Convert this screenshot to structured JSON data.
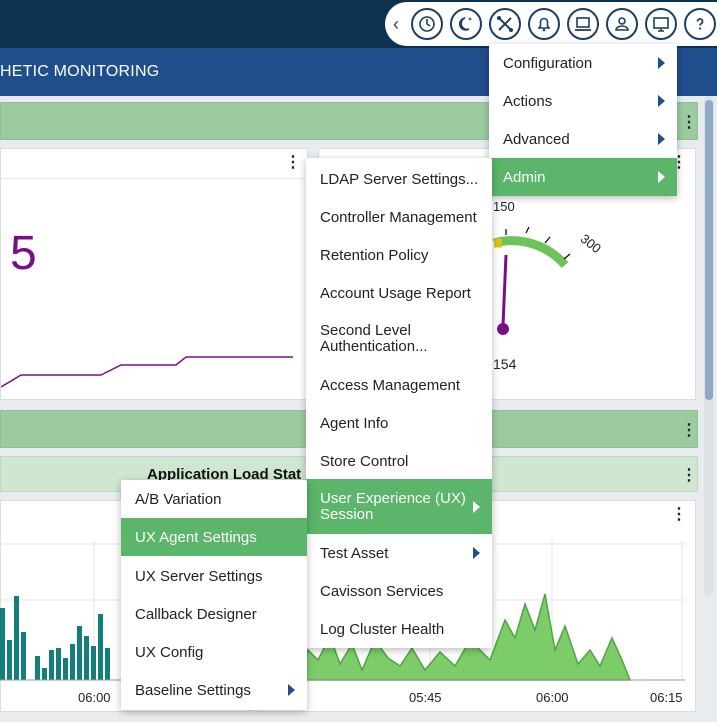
{
  "header": {
    "nav_title": "HETIC MONITORING",
    "toolbar_icons": [
      "clock-icon",
      "night-mode-icon",
      "tools-icon",
      "bell-icon",
      "laptop-icon",
      "user-icon",
      "monitor-icon",
      "help-icon"
    ]
  },
  "widgets": {
    "big_number": "5",
    "gauge": {
      "scale_mid": "150",
      "scale_max": "300",
      "value": "154"
    },
    "load_chart_title": "Application Load Stat",
    "x_ticks_left": [
      "06:00"
    ],
    "x_ticks_right": [
      "05:45",
      "06:00",
      "06:15"
    ]
  },
  "top_menu": {
    "items": [
      {
        "label": "Configuration",
        "submenu": true
      },
      {
        "label": "Actions",
        "submenu": true
      },
      {
        "label": "Advanced",
        "submenu": true
      },
      {
        "label": "Admin",
        "submenu": true,
        "active": true
      }
    ]
  },
  "admin_menu": {
    "items": [
      {
        "label": "LDAP Server Settings..."
      },
      {
        "label": "Controller Management"
      },
      {
        "label": "Retention Policy"
      },
      {
        "label": "Account Usage Report"
      },
      {
        "label": "Second Level Authentication...",
        "line1": "Second Level",
        "line2": "Authentication..."
      },
      {
        "label": "Access Management"
      },
      {
        "label": "Agent Info"
      },
      {
        "label": "Store Control"
      },
      {
        "label": "User Experience (UX) Session",
        "line1": "User Experience (UX)",
        "line2": "Session",
        "active": true,
        "submenu": true
      },
      {
        "label": "Test Asset",
        "submenu": true
      },
      {
        "label": "Cavisson Services"
      },
      {
        "label": "Log Cluster Health"
      }
    ]
  },
  "ux_menu": {
    "items": [
      {
        "label": "A/B Variation"
      },
      {
        "label": "UX Agent Settings",
        "active": true
      },
      {
        "label": "UX Server Settings"
      },
      {
        "label": "Callback Designer"
      },
      {
        "label": "UX Config"
      },
      {
        "label": "Baseline Settings",
        "submenu": true
      }
    ]
  },
  "colors": {
    "topbar": "#0d3150",
    "navbar": "#1f4e8c",
    "menu_active": "#5bb56a",
    "metric_purple": "#7b0e88",
    "bar_teal": "#147e7a",
    "area_green": "#6cc35a"
  }
}
